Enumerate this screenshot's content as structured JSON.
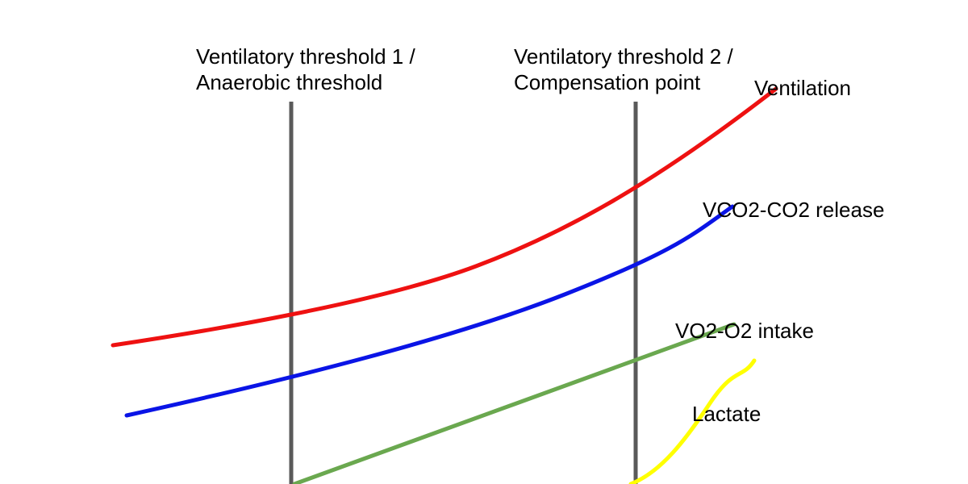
{
  "thresholds": [
    {
      "line1": "Ventilatory threshold 1 /",
      "line2": "Anaerobic threshold"
    },
    {
      "line1": "Ventilatory threshold 2 /",
      "line2": "Compensation point"
    }
  ],
  "curves": [
    {
      "label": "Ventilation",
      "color": "#ee1111"
    },
    {
      "label": "VCO2-CO2 release",
      "color": "#0a14e6"
    },
    {
      "label": "VO2-O2 intake",
      "color": "#6aa84f"
    },
    {
      "label": "Lactate",
      "color": "#ffff00"
    }
  ],
  "colors": {
    "threshold_line": "#5a5a5a",
    "background": "#ffffff",
    "text": "#000000"
  }
}
